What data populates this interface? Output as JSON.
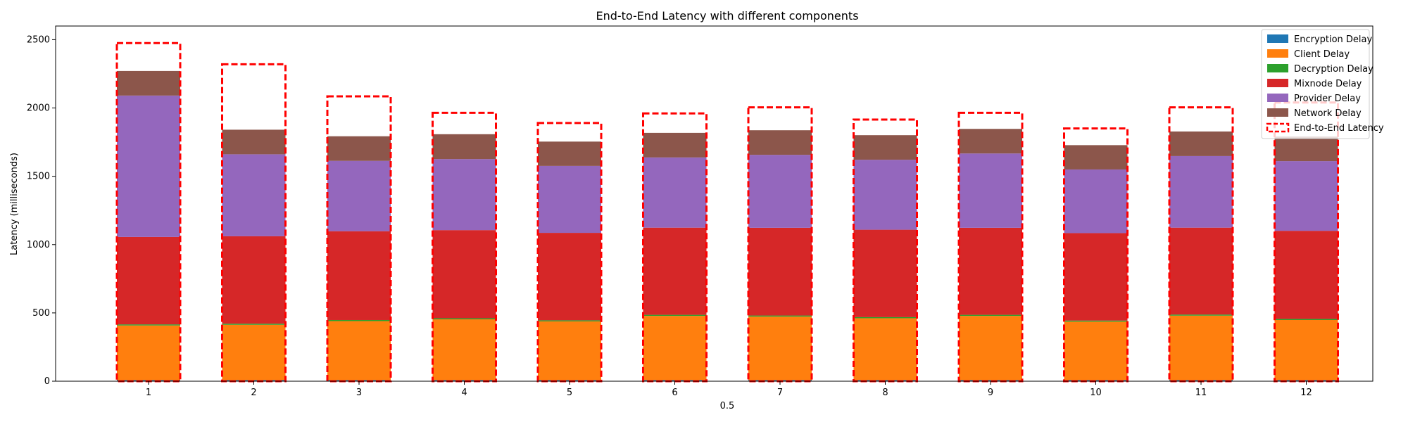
{
  "chart_data": {
    "type": "bar",
    "stacked": true,
    "title": "End-to-End Latency with different components",
    "xlabel": "0.5",
    "ylabel": "Latency (milliseconds)",
    "ylim": [
      0,
      2600
    ],
    "yticks": [
      0,
      500,
      1000,
      1500,
      2000,
      2500
    ],
    "grid": false,
    "legend_position": "top-right",
    "categories": [
      "1",
      "2",
      "3",
      "4",
      "5",
      "6",
      "7",
      "8",
      "9",
      "10",
      "11",
      "12"
    ],
    "series": [
      {
        "name": "Encryption Delay",
        "color": "#1f77b4",
        "values": [
          8,
          8,
          8,
          8,
          8,
          8,
          8,
          8,
          8,
          8,
          8,
          8
        ]
      },
      {
        "name": "Client Delay",
        "color": "#ff7f0e",
        "values": [
          400,
          405,
          432,
          445,
          430,
          470,
          465,
          453,
          470,
          428,
          472,
          440
        ]
      },
      {
        "name": "Decryption Delay",
        "color": "#2ca02c",
        "values": [
          8,
          8,
          8,
          8,
          8,
          8,
          8,
          8,
          8,
          8,
          8,
          8
        ]
      },
      {
        "name": "Mixnode Delay",
        "color": "#d62728",
        "values": [
          640,
          640,
          650,
          645,
          640,
          638,
          642,
          640,
          637,
          640,
          636,
          645
        ]
      },
      {
        "name": "Provider Delay",
        "color": "#9467bd",
        "values": [
          1035,
          600,
          515,
          520,
          490,
          514,
          534,
          512,
          544,
          466,
          524,
          510
        ]
      },
      {
        "name": "Network Delay",
        "color": "#8c564b",
        "values": [
          180,
          180,
          180,
          182,
          178,
          180,
          180,
          180,
          180,
          178,
          180,
          180
        ]
      }
    ],
    "end_to_end": {
      "name": "End-to-End Latency",
      "color": "#ff0000",
      "values": [
        2475,
        2320,
        2085,
        1965,
        1890,
        1960,
        2005,
        1915,
        1965,
        1850,
        2005,
        2040
      ]
    }
  }
}
